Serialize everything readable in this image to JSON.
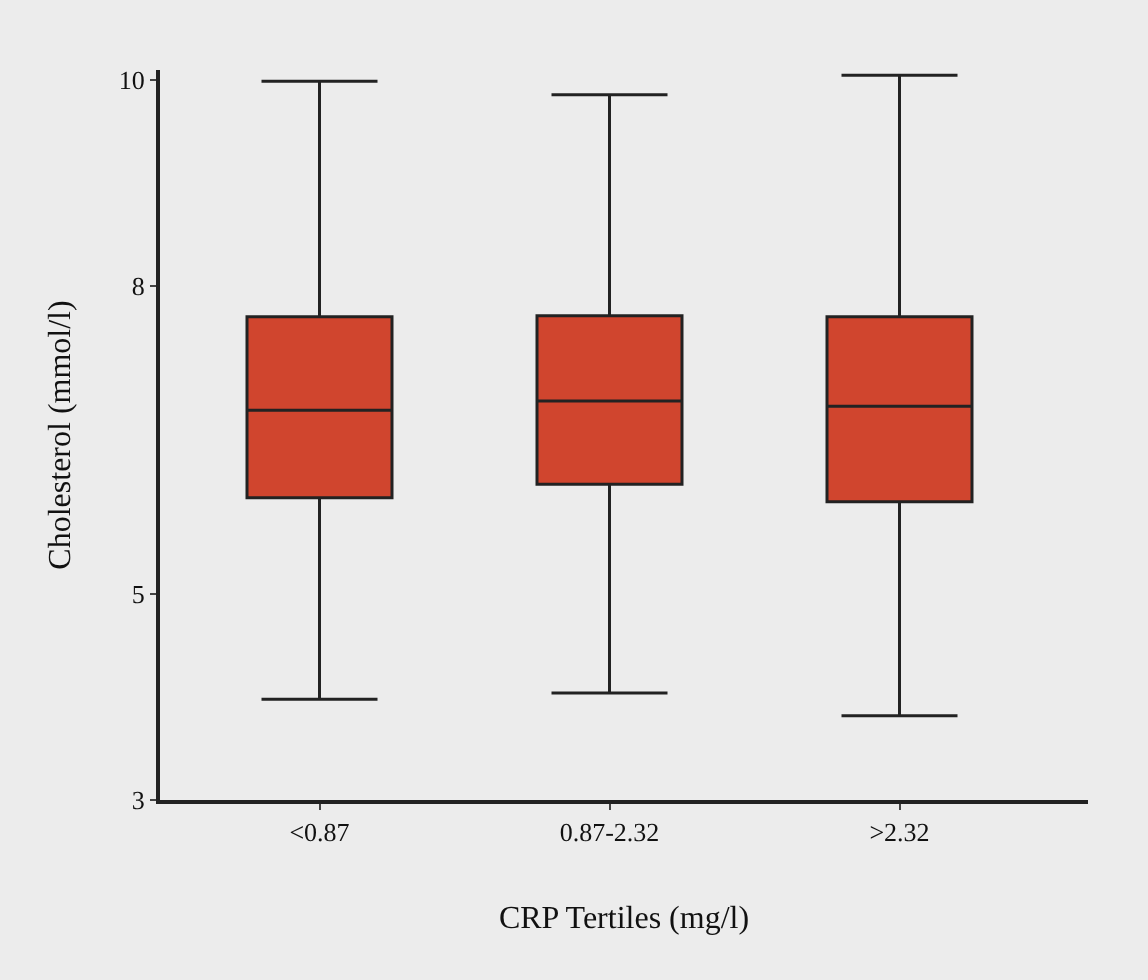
{
  "chart_data": {
    "type": "box",
    "xlabel": "CRP Tertiles (mg/l)",
    "ylabel": "Cholesterol (mmol/l)",
    "categories": [
      "<0.87",
      "0.87-2.32",
      ">2.32"
    ],
    "color": "#d0452e",
    "boxes": [
      {
        "low": 3.98,
        "q1": 5.94,
        "median": 6.79,
        "q3": 7.7,
        "high": 9.99
      },
      {
        "low": 4.04,
        "q1": 6.07,
        "median": 6.88,
        "q3": 7.71,
        "high": 9.86
      },
      {
        "low": 3.82,
        "q1": 5.9,
        "median": 6.83,
        "q3": 7.7,
        "high": 10.05
      }
    ],
    "ylim": [
      3,
      10.1
    ],
    "yticks": [
      3,
      5,
      8,
      10
    ],
    "grid": false
  }
}
